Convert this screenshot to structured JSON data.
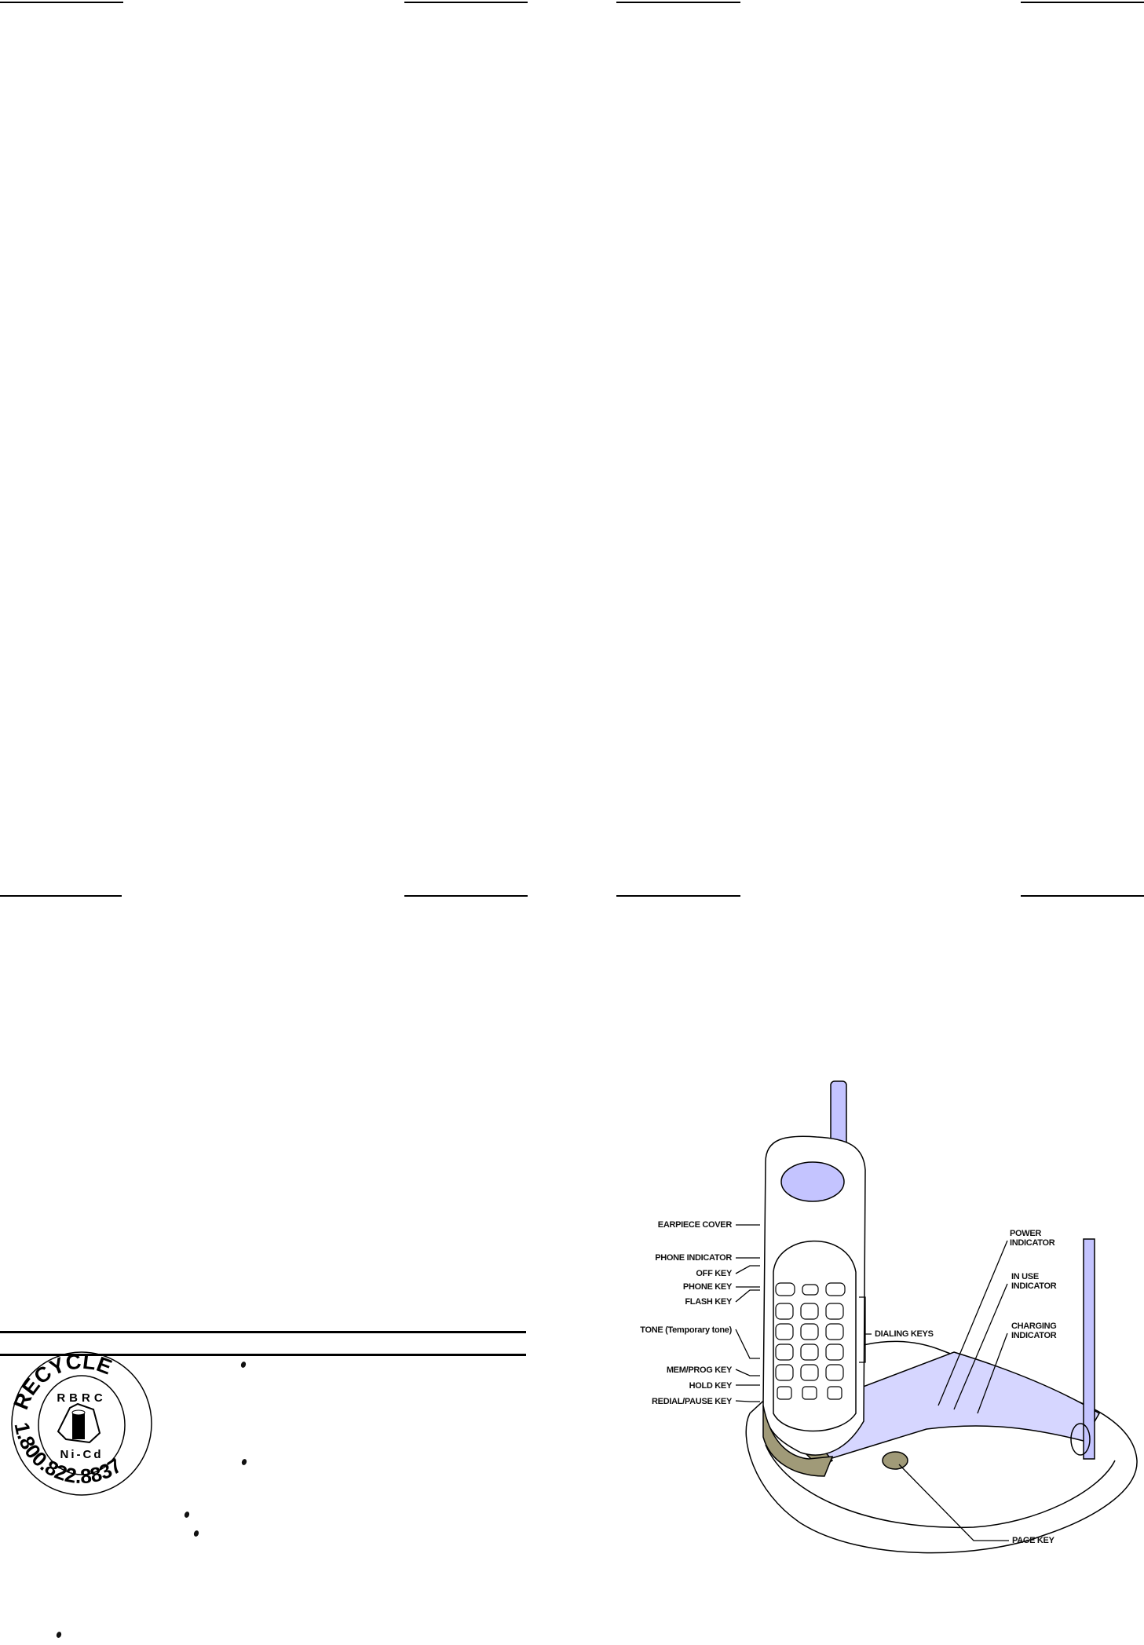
{
  "recycle_logo": {
    "top_text": "RECYCLE",
    "inner_top": "RBRC",
    "inner_bottom": "Ni-Cd",
    "phone": "1.800.822.8837"
  },
  "diagram": {
    "colors": {
      "accent": "#c4c4ff",
      "accent_dark": "#8c8cd8",
      "tan": "#a09a78",
      "line": "#000000"
    },
    "left_labels": [
      "EARPIECE COVER",
      "PHONE INDICATOR",
      "OFF KEY",
      "PHONE KEY",
      "FLASH KEY",
      "TONE (Temporary tone)",
      "MEM/PROG KEY",
      "HOLD KEY",
      "REDIAL/PAUSE KEY"
    ],
    "dialing_keys": "DIALING KEYS",
    "power_indicator": [
      "POWER",
      "INDICATOR"
    ],
    "in_use_indicator": [
      "IN USE",
      "INDICATOR"
    ],
    "charging_indicator": [
      "CHARGING",
      "INDICATOR"
    ],
    "page_key": "PAGE KEY"
  }
}
